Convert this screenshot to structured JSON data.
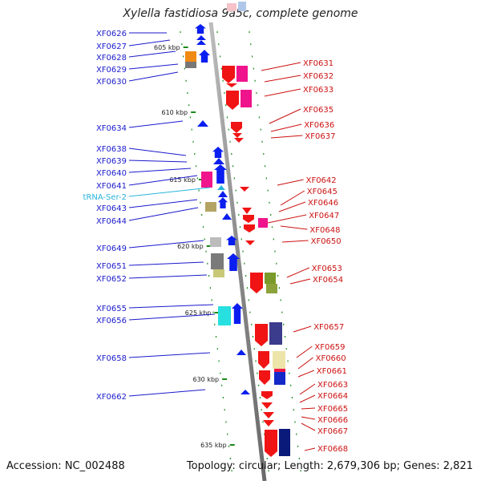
{
  "title": "Xylella fastidiosa 9a5c, complete genome",
  "accession": "Accession: NC_002488",
  "stats": "Topology: circular; Length: 2,679,306 bp; Genes: 2,821",
  "scale_labels": [
    "605 kbp",
    "610 kbp",
    "615 kbp",
    "620 kbp",
    "625 kbp",
    "630 kbp",
    "635 kbp"
  ],
  "left_labels": [
    "XF0626",
    "XF0627",
    "XF0628",
    "XF0629",
    "XF0630",
    "XF0634",
    "XF0638",
    "XF0639",
    "XF0640",
    "XF0641",
    "tRNA-Ser-2",
    "XF0643",
    "XF0644",
    "XF0649",
    "XF0651",
    "XF0652",
    "XF0655",
    "XF0656",
    "XF0658",
    "XF0662"
  ],
  "right_labels": [
    "XF0631",
    "XF0632",
    "XF0633",
    "XF0635",
    "XF0636",
    "XF0637",
    "XF0642",
    "XF0645",
    "XF0646",
    "XF0647",
    "XF0648",
    "XF0650",
    "XF0653",
    "XF0654",
    "XF0657",
    "XF0659",
    "XF0660",
    "XF0661",
    "XF0663",
    "XF0664",
    "XF0665",
    "XF0666",
    "XF0667",
    "XF0668"
  ],
  "colors": {
    "forward_strand": "#0a1ef0",
    "reverse_strand": "#f01414",
    "trna": "#28b4dc",
    "left_label": "#1a1acc",
    "right_label": "#cc1111",
    "tick": "#1a8a1a",
    "axis": "#8c8c8c"
  }
}
